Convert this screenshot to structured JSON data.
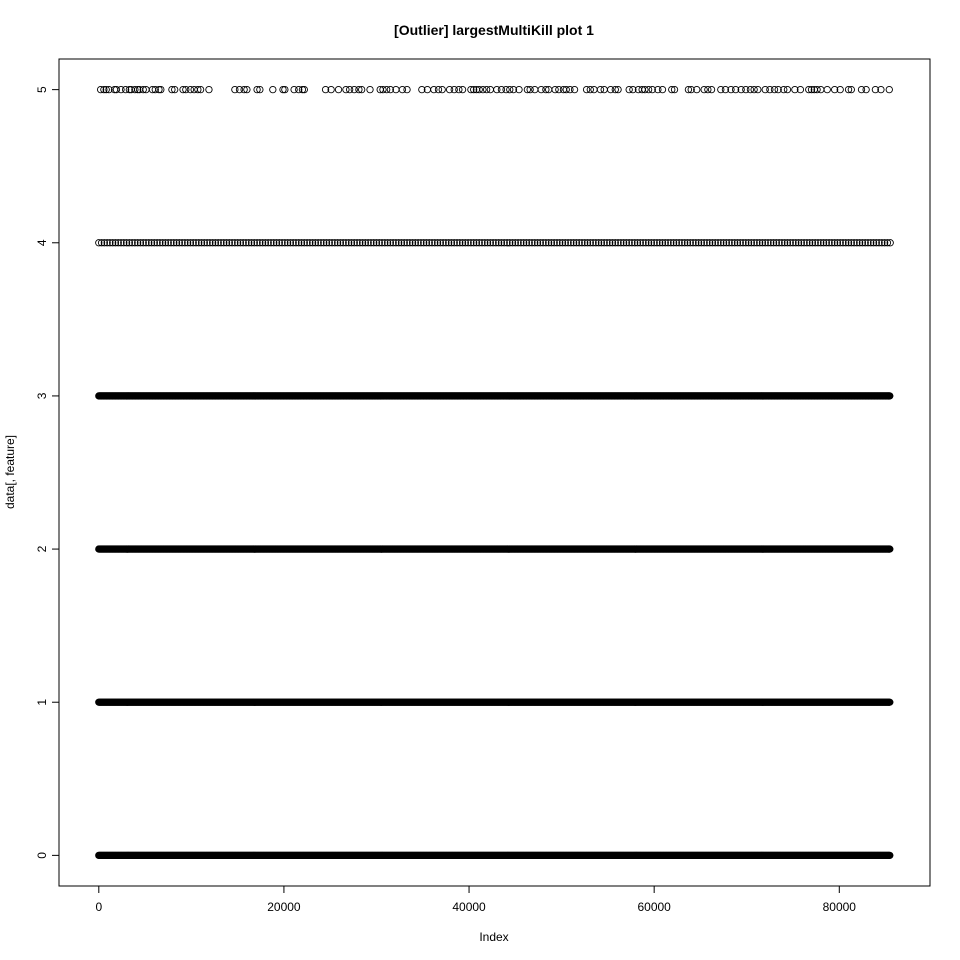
{
  "chart_data": {
    "type": "scatter",
    "title": "[Outlier] largestMultiKill plot 1",
    "xlabel": "Index",
    "ylabel": "data[, feature]",
    "xlim": [
      -4300,
      89800
    ],
    "ylim": [
      -0.2,
      5.2
    ],
    "x_ticks": [
      0,
      20000,
      40000,
      60000,
      80000
    ],
    "x_tick_labels": [
      "0",
      "20000",
      "40000",
      "60000",
      "80000"
    ],
    "y_ticks": [
      0,
      1,
      2,
      3,
      4,
      5
    ],
    "y_tick_labels": [
      "0",
      "1",
      "2",
      "3",
      "4",
      "5"
    ],
    "grid": false,
    "marker": "open-circle",
    "marker_color": "#000000",
    "n_points": 85500,
    "levels": [
      {
        "y": 0,
        "x_min": 0,
        "x_max": 85500,
        "density": "continuous"
      },
      {
        "y": 1,
        "x_min": 0,
        "x_max": 85500,
        "density": "continuous"
      },
      {
        "y": 2,
        "x_min": 0,
        "x_max": 85500,
        "density": "continuous"
      },
      {
        "y": 3,
        "x_min": 0,
        "x_max": 85500,
        "density": "continuous"
      },
      {
        "y": 4,
        "x_min": 0,
        "x_max": 85500,
        "density": "dense"
      },
      {
        "y": 5,
        "x_min": 200,
        "x_max": 85400,
        "density": "sparse"
      }
    ],
    "sparse_points_y5": [
      200,
      550,
      800,
      1100,
      1700,
      1900,
      2400,
      2900,
      3300,
      3500,
      3900,
      4200,
      4400,
      4800,
      5100,
      5800,
      6100,
      6500,
      6700,
      7900,
      8200,
      9100,
      9400,
      9900,
      10300,
      10700,
      11000,
      11900,
      14700,
      15200,
      15700,
      16000,
      17100,
      17400,
      18800,
      19900,
      20100,
      21100,
      21600,
      22000,
      22200,
      24500,
      25100,
      25900,
      26700,
      27100,
      27600,
      28100,
      28400,
      29300,
      30400,
      30700,
      31100,
      31500,
      32100,
      32800,
      33300,
      34900,
      35500,
      36200,
      36700,
      37100,
      37900,
      38400,
      38900,
      39300,
      40200,
      40500,
      40800,
      41100,
      41500,
      41900,
      42300,
      43000,
      43500,
      44000,
      44400,
      44800,
      45400,
      46300,
      46600,
      47100,
      47800,
      48300,
      48600,
      49300,
      49700,
      50200,
      50500,
      50900,
      51400,
      52700,
      53100,
      53500,
      54200,
      54600,
      55300,
      55800,
      56100,
      57300,
      57700,
      58300,
      58700,
      59000,
      59400,
      59800,
      60400,
      60900,
      61900,
      62200,
      63700,
      64000,
      64600,
      65400,
      65800,
      66200,
      67200,
      67700,
      68300,
      68800,
      69400,
      69900,
      70400,
      70800,
      71200,
      72000,
      72500,
      73000,
      73400,
      74000,
      74400,
      75200,
      75800,
      76700,
      77000,
      77300,
      77600,
      78000,
      78700,
      79500,
      80100,
      81000,
      81300,
      82400,
      82900,
      83900,
      84500,
      85400
    ]
  }
}
